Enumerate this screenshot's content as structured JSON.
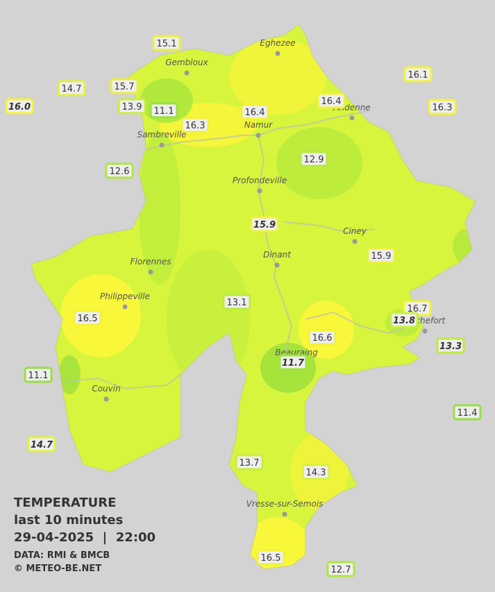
{
  "map": {
    "legend": {
      "title": "TEMPERATURE",
      "period": "last 10 minutes",
      "datetime": "29-04-2025  |  22:00",
      "source": "DATA: RMI & BMCB",
      "copyright": "© METEO-BE.NET"
    },
    "cities": [
      "Eghezee",
      "Gembloux",
      "Andenne",
      "Namur",
      "Sambreville",
      "Profondeville",
      "Ciney",
      "Dinant",
      "Florennes",
      "Philippeville",
      "Rochefort",
      "Beauraing",
      "Couvin",
      "Vresse-sur-Semois"
    ],
    "stations": [
      {
        "label": "15.1",
        "italic": false,
        "color": "#e8f040"
      },
      {
        "label": "14.7",
        "italic": false,
        "color": "#e0f040"
      },
      {
        "label": "15.7",
        "italic": false,
        "color": "#e8f040"
      },
      {
        "label": "16.0",
        "italic": true,
        "color": "#f2f23a"
      },
      {
        "label": "13.9",
        "italic": false,
        "color": "#c8ee40"
      },
      {
        "label": "11.1",
        "italic": false,
        "color": "#98e040"
      },
      {
        "label": "16.3",
        "italic": false,
        "color": "#f2f23a"
      },
      {
        "label": "16.4",
        "italic": false,
        "color": "#f2f23a"
      },
      {
        "label": "16.4",
        "italic": false,
        "color": "#f2f23a"
      },
      {
        "label": "16.1",
        "italic": false,
        "color": "#f2f23a"
      },
      {
        "label": "16.3",
        "italic": false,
        "color": "#f2f23a"
      },
      {
        "label": "12.6",
        "italic": false,
        "color": "#b0e640"
      },
      {
        "label": "12.9",
        "italic": false,
        "color": "#b8e840"
      },
      {
        "label": "15.9",
        "italic": true,
        "color": "#eef23a"
      },
      {
        "label": "15.9",
        "italic": false,
        "color": "#eef23a"
      },
      {
        "label": "13.1",
        "italic": false,
        "color": "#bcea40"
      },
      {
        "label": "16.5",
        "italic": false,
        "color": "#f2f23a"
      },
      {
        "label": "16.7",
        "italic": false,
        "color": "#f2f23a"
      },
      {
        "label": "13.8",
        "italic": true,
        "color": "#c8ee40"
      },
      {
        "label": "16.6",
        "italic": false,
        "color": "#f2f23a"
      },
      {
        "label": "13.3",
        "italic": true,
        "color": "#c0ea40"
      },
      {
        "label": "11.7",
        "italic": true,
        "color": "#a0e240"
      },
      {
        "label": "11.1",
        "italic": false,
        "color": "#98e040"
      },
      {
        "label": "11.4",
        "italic": false,
        "color": "#98e040"
      },
      {
        "label": "14.7",
        "italic": true,
        "color": "#e0f040"
      },
      {
        "label": "13.7",
        "italic": false,
        "color": "#c8ee40"
      },
      {
        "label": "14.3",
        "italic": false,
        "color": "#d8f040"
      },
      {
        "label": "16.5",
        "italic": false,
        "color": "#f2f23a"
      },
      {
        "label": "12.7",
        "italic": false,
        "color": "#b0e640"
      }
    ]
  }
}
